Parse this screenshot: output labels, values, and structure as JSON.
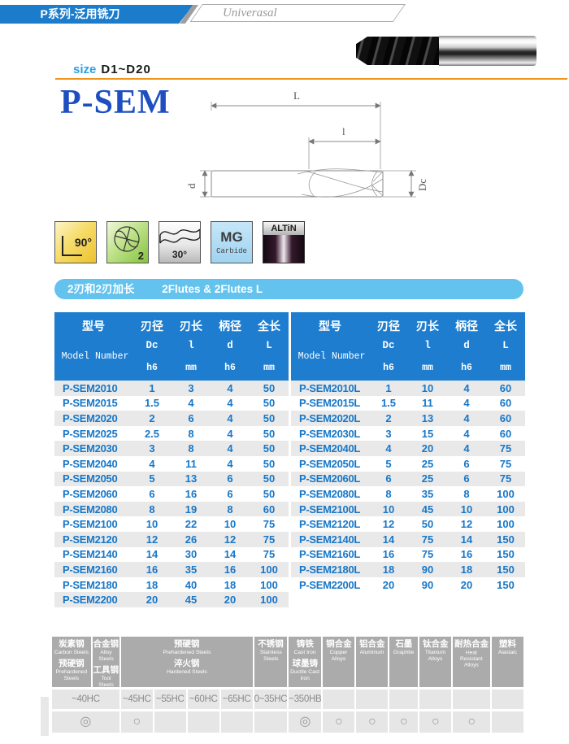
{
  "header": {
    "series_title_zh": "P系列-泛用铣刀",
    "subtitle_en": "Univerasal",
    "size_prefix": "size",
    "size_range": "D1~D20",
    "product_title": "P-SEM"
  },
  "drawing_labels": {
    "overall_length": "L",
    "flute_length": "l",
    "shank_dia": "d",
    "cut_dia": "Dc"
  },
  "icons": [
    {
      "name": "corner-angle-90",
      "text": "90°"
    },
    {
      "name": "flute-count",
      "text": "2"
    },
    {
      "name": "helix-angle-30",
      "text": "30°"
    },
    {
      "name": "material-grade",
      "line1": "MG",
      "line2": "Carbide"
    },
    {
      "name": "coating-altin",
      "text": "ALTiN"
    }
  ],
  "series_banner": {
    "zh": "2刃和2刃加长",
    "en": "2Flutes &  2Flutes L"
  },
  "spec_table": {
    "header": {
      "model_zh": "型号",
      "model_en": "Model Number",
      "cols": [
        {
          "zh": "刃径",
          "sym": "Dc",
          "unit": "h6"
        },
        {
          "zh": "刃长",
          "sym": "l",
          "unit": "mm"
        },
        {
          "zh": "柄径",
          "sym": "d",
          "unit": "h6"
        },
        {
          "zh": "全长",
          "sym": "L",
          "unit": "mm"
        }
      ]
    },
    "left_rows": [
      [
        "P-SEM2010",
        "1",
        "3",
        "4",
        "50"
      ],
      [
        "P-SEM2015",
        "1.5",
        "4",
        "4",
        "50"
      ],
      [
        "P-SEM2020",
        "2",
        "6",
        "4",
        "50"
      ],
      [
        "P-SEM2025",
        "2.5",
        "8",
        "4",
        "50"
      ],
      [
        "P-SEM2030",
        "3",
        "8",
        "4",
        "50"
      ],
      [
        "P-SEM2040",
        "4",
        "11",
        "4",
        "50"
      ],
      [
        "P-SEM2050",
        "5",
        "13",
        "6",
        "50"
      ],
      [
        "P-SEM2060",
        "6",
        "16",
        "6",
        "50"
      ],
      [
        "P-SEM2080",
        "8",
        "19",
        "8",
        "60"
      ],
      [
        "P-SEM2100",
        "10",
        "22",
        "10",
        "75"
      ],
      [
        "P-SEM2120",
        "12",
        "26",
        "12",
        "75"
      ],
      [
        "P-SEM2140",
        "14",
        "30",
        "14",
        "75"
      ],
      [
        "P-SEM2160",
        "16",
        "35",
        "16",
        "100"
      ],
      [
        "P-SEM2180",
        "18",
        "40",
        "18",
        "100"
      ],
      [
        "P-SEM2200",
        "20",
        "45",
        "20",
        "100"
      ]
    ],
    "right_rows": [
      [
        "P-SEM2010L",
        "1",
        "10",
        "4",
        "60"
      ],
      [
        "P-SEM2015L",
        "1.5",
        "11",
        "4",
        "60"
      ],
      [
        "P-SEM2020L",
        "2",
        "13",
        "4",
        "60"
      ],
      [
        "P-SEM2030L",
        "3",
        "15",
        "4",
        "60"
      ],
      [
        "P-SEM2040L",
        "4",
        "20",
        "4",
        "75"
      ],
      [
        "P-SEM2050L",
        "5",
        "25",
        "6",
        "75"
      ],
      [
        "P-SEM2060L",
        "6",
        "25",
        "6",
        "75"
      ],
      [
        "P-SEM2080L",
        "8",
        "35",
        "8",
        "100"
      ],
      [
        "P-SEM2100L",
        "10",
        "45",
        "10",
        "100"
      ],
      [
        "P-SEM2120L",
        "12",
        "50",
        "12",
        "100"
      ],
      [
        "P-SEM2140L",
        "14",
        "75",
        "14",
        "150"
      ],
      [
        "P-SEM2160L",
        "16",
        "75",
        "16",
        "150"
      ],
      [
        "P-SEM2180L",
        "18",
        "90",
        "18",
        "150"
      ],
      [
        "P-SEM2200L",
        "20",
        "90",
        "20",
        "150"
      ]
    ]
  },
  "materials_table": {
    "columns": [
      {
        "zh": "炭素钢",
        "en": "Carbon Steels",
        "zh2": "预硬钢",
        "en2": "Prehardened Steels",
        "span": 1
      },
      {
        "zh": "合金钢",
        "en": "Alloy Steels",
        "zh2": "工具钢",
        "en2": "Tool Steels",
        "span": 1
      },
      {
        "zh": "预硬钢",
        "en": "Prehardened Steels",
        "zh2": "淬火钢",
        "en2": "Hardened Steels",
        "span": 4
      },
      {
        "zh": "不锈钢",
        "en": "Stainless Steels",
        "span": 1
      },
      {
        "zh": "铸铁",
        "en": "Cast Iron",
        "zh2": "球墨铸",
        "en2": "Ductile Cast Iron",
        "span": 1
      },
      {
        "zh": "铜合金",
        "en": "Copper Alloys",
        "span": 1
      },
      {
        "zh": "铝合金",
        "en": "Aluminum",
        "span": 1
      },
      {
        "zh": "石墨",
        "en": "Graphite",
        "span": 1
      },
      {
        "zh": "钛合金",
        "en": "Titanium Alloys",
        "span": 1
      },
      {
        "zh": "耐热合金",
        "en": "Heat Resistant Alloys",
        "span": 1
      },
      {
        "zh": "塑料",
        "en": "Alastaic",
        "span": 1
      }
    ],
    "hardness_cells": [
      {
        "text": "~40HC",
        "span": 2
      },
      {
        "text": "~45HC",
        "span": 1
      },
      {
        "text": "~55HC",
        "span": 1
      },
      {
        "text": "~60HC",
        "span": 1
      },
      {
        "text": "~65HC",
        "span": 1
      },
      {
        "text": "0~35HC",
        "span": 1
      },
      {
        "text": "~350HB",
        "span": 1
      },
      {
        "text": "",
        "span": 1
      },
      {
        "text": "",
        "span": 1
      },
      {
        "text": "",
        "span": 1
      },
      {
        "text": "",
        "span": 1
      },
      {
        "text": "",
        "span": 1
      },
      {
        "text": "",
        "span": 1
      }
    ],
    "rating_cells": [
      {
        "mark": "◎",
        "span": 2
      },
      {
        "mark": "○",
        "span": 1
      },
      {
        "mark": "",
        "span": 1
      },
      {
        "mark": "",
        "span": 1
      },
      {
        "mark": "",
        "span": 1
      },
      {
        "mark": "",
        "span": 1
      },
      {
        "mark": "◎",
        "span": 1
      },
      {
        "mark": "○",
        "span": 1
      },
      {
        "mark": "○",
        "span": 1
      },
      {
        "mark": "○",
        "span": 1
      },
      {
        "mark": "○",
        "span": 1
      },
      {
        "mark": "○",
        "span": 1
      },
      {
        "mark": "",
        "span": 1
      }
    ]
  },
  "colors": {
    "banner_blue": "#1b7ccb",
    "table_header_blue": "#1e7dce",
    "data_text_blue": "#1777c8",
    "series_banner_blue": "#63c3ee",
    "orange_rule": "#f0941c",
    "title_blue": "#1e4fc0",
    "materials_header_gray": "#ababab"
  }
}
